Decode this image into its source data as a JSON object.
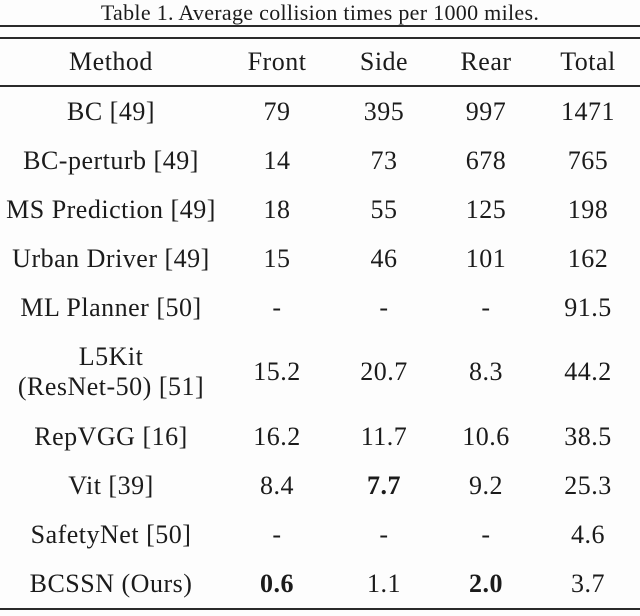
{
  "colors": {
    "background": "#fdfdfd",
    "text": "#1b1b1b",
    "rule": "#2a2a2a"
  },
  "table": {
    "title": "Table 1. Average collision times per 1000 miles.",
    "columns": [
      "Method",
      "Front",
      "Side",
      "Rear",
      "Total"
    ],
    "rows": [
      {
        "method_lines": [
          "BC [49]"
        ],
        "values": [
          {
            "text": "79",
            "bold": false
          },
          {
            "text": "395",
            "bold": false
          },
          {
            "text": "997",
            "bold": false
          },
          {
            "text": "1471",
            "bold": false
          }
        ]
      },
      {
        "method_lines": [
          "BC-perturb [49]"
        ],
        "values": [
          {
            "text": "14",
            "bold": false
          },
          {
            "text": "73",
            "bold": false
          },
          {
            "text": "678",
            "bold": false
          },
          {
            "text": "765",
            "bold": false
          }
        ]
      },
      {
        "method_lines": [
          "MS Prediction [49]"
        ],
        "values": [
          {
            "text": "18",
            "bold": false
          },
          {
            "text": "55",
            "bold": false
          },
          {
            "text": "125",
            "bold": false
          },
          {
            "text": "198",
            "bold": false
          }
        ]
      },
      {
        "method_lines": [
          "Urban Driver [49]"
        ],
        "values": [
          {
            "text": "15",
            "bold": false
          },
          {
            "text": "46",
            "bold": false
          },
          {
            "text": "101",
            "bold": false
          },
          {
            "text": "162",
            "bold": false
          }
        ]
      },
      {
        "method_lines": [
          "ML Planner [50]"
        ],
        "values": [
          {
            "text": "-",
            "bold": false
          },
          {
            "text": "-",
            "bold": false
          },
          {
            "text": "-",
            "bold": false
          },
          {
            "text": "91.5",
            "bold": false
          }
        ]
      },
      {
        "method_lines": [
          "L5Kit",
          "(ResNet-50) [51]"
        ],
        "tall": true,
        "values": [
          {
            "text": "15.2",
            "bold": false
          },
          {
            "text": "20.7",
            "bold": false
          },
          {
            "text": "8.3",
            "bold": false
          },
          {
            "text": "44.2",
            "bold": false
          }
        ]
      },
      {
        "method_lines": [
          "RepVGG [16]"
        ],
        "values": [
          {
            "text": "16.2",
            "bold": false
          },
          {
            "text": "11.7",
            "bold": false
          },
          {
            "text": "10.6",
            "bold": false
          },
          {
            "text": "38.5",
            "bold": false
          }
        ]
      },
      {
        "method_lines": [
          "Vit [39]"
        ],
        "values": [
          {
            "text": "8.4",
            "bold": false
          },
          {
            "text": "7.7",
            "bold": true
          },
          {
            "text": "9.2",
            "bold": false
          },
          {
            "text": "25.3",
            "bold": false
          }
        ]
      },
      {
        "method_lines": [
          "SafetyNet [50]"
        ],
        "values": [
          {
            "text": "-",
            "bold": false
          },
          {
            "text": "-",
            "bold": false
          },
          {
            "text": "-",
            "bold": false
          },
          {
            "text": "4.6",
            "bold": false
          }
        ]
      },
      {
        "method_lines": [
          "BCSSN (Ours)"
        ],
        "values": [
          {
            "text": "0.6",
            "bold": true
          },
          {
            "text": "1.1",
            "bold": false
          },
          {
            "text": "2.0",
            "bold": true
          },
          {
            "text": "3.7",
            "bold": false
          }
        ]
      }
    ]
  }
}
